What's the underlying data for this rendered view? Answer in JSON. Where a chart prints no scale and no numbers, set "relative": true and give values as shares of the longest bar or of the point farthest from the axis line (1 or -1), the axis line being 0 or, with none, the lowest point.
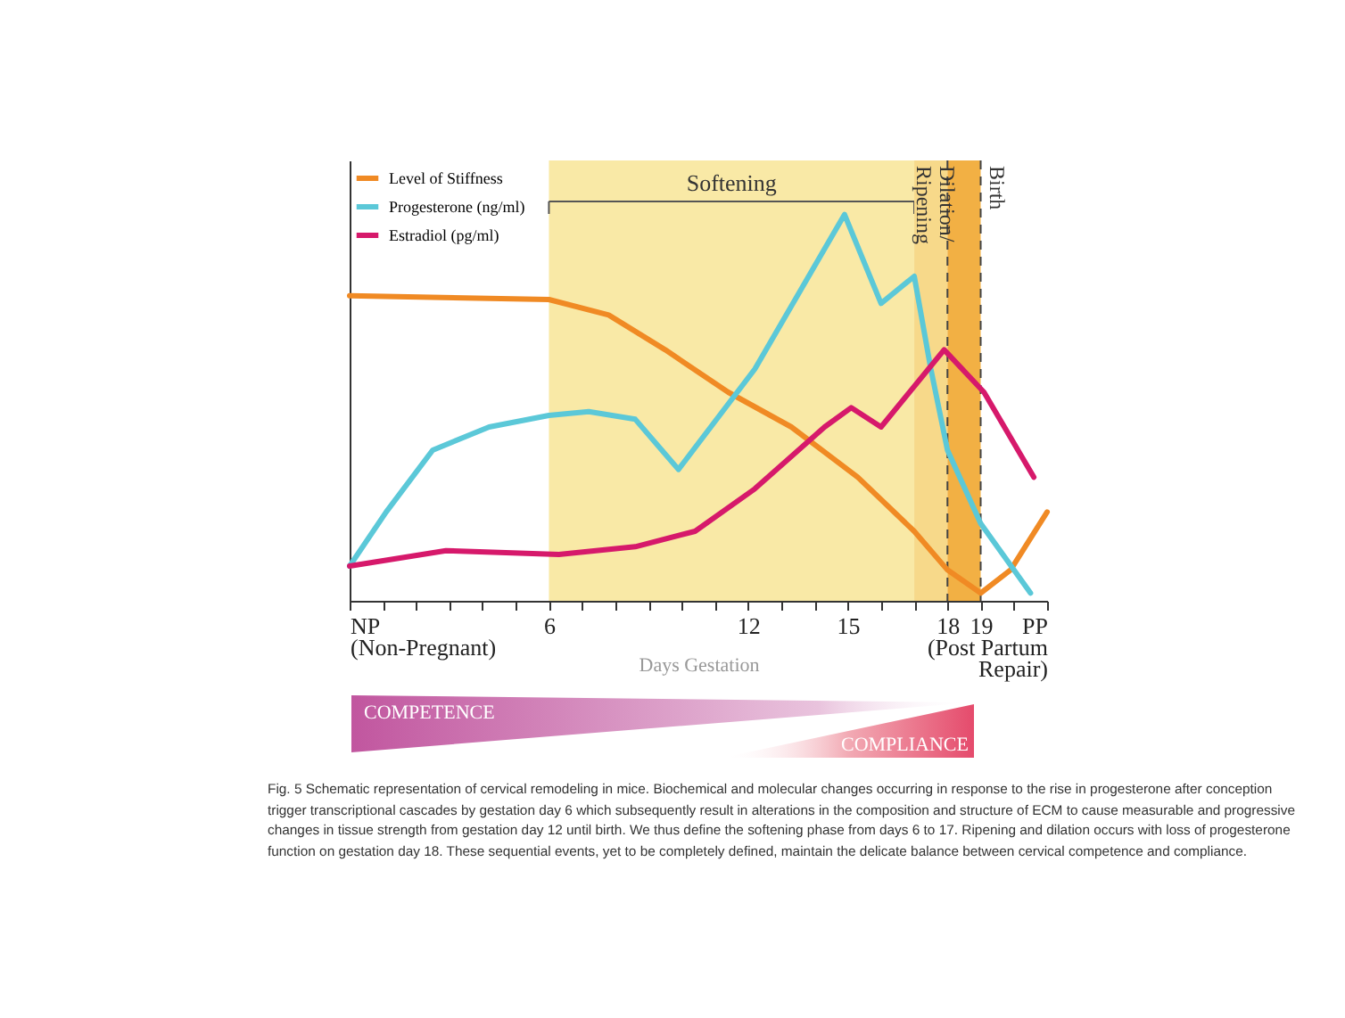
{
  "chart_data": {
    "type": "line",
    "relative": true,
    "xlabel": "Days Gestation",
    "xlim": [
      0,
      21
    ],
    "xticks": [
      {
        "value": 0,
        "label": "NP\n(Non-Pregnant)"
      },
      {
        "value": 1,
        "label": null
      },
      {
        "value": 2,
        "label": null
      },
      {
        "value": 3,
        "label": null
      },
      {
        "value": 4,
        "label": null
      },
      {
        "value": 5,
        "label": null
      },
      6,
      {
        "value": 7,
        "label": null
      },
      {
        "value": 8,
        "label": null
      },
      {
        "value": 9,
        "label": null
      },
      {
        "value": 10,
        "label": null
      },
      {
        "value": 11,
        "label": null
      },
      12,
      {
        "value": 13,
        "label": null
      },
      {
        "value": 14,
        "label": null
      },
      15,
      {
        "value": 16,
        "label": null
      },
      {
        "value": 17,
        "label": null
      },
      18,
      19,
      {
        "value": 20,
        "label": null
      },
      {
        "value": 21,
        "label": "PP\n(Post Partum\nRepair)"
      }
    ],
    "legend": "top left",
    "line_style": "solid",
    "series": [
      {
        "name": "Level of Stiffness",
        "color": "#f08a24",
        "x": [
          0,
          6,
          7.8,
          9.5,
          11.4,
          13.3,
          15.3,
          17,
          18,
          19,
          19.9,
          21
        ],
        "values": [
          0.79,
          0.78,
          0.74,
          0.65,
          0.54,
          0.45,
          0.32,
          0.18,
          0.08,
          0.02,
          0.08,
          0.23
        ]
      },
      {
        "name": "Progesterone (ng/ml)",
        "color": "#5bc8d8",
        "x": [
          0,
          1.1,
          2.5,
          4.2,
          6,
          7.2,
          8.6,
          9.9,
          12.2,
          14.9,
          16,
          17,
          17.5,
          18,
          19,
          20.5
        ],
        "values": [
          0.09,
          0.23,
          0.39,
          0.45,
          0.48,
          0.49,
          0.47,
          0.34,
          0.6,
          1,
          0.77,
          0.84,
          0.6,
          0.39,
          0.2,
          0.02
        ]
      },
      {
        "name": "Estradiol (pg/ml)",
        "color": "#d6196b",
        "x": [
          0,
          2.9,
          6.3,
          8.6,
          10.4,
          12.2,
          14.3,
          15.1,
          16,
          17.9,
          19.1,
          20.6
        ],
        "values": [
          0.09,
          0.13,
          0.12,
          0.14,
          0.18,
          0.29,
          0.45,
          0.5,
          0.45,
          0.65,
          0.54,
          0.32
        ]
      }
    ],
    "bands": [
      {
        "axis": "x",
        "from": 6,
        "to": 17,
        "color": "#f9e9a6",
        "label": "Softening"
      },
      {
        "axis": "x",
        "from": 17,
        "to": 18,
        "color": "#f7d98a"
      },
      {
        "axis": "x",
        "from": 18,
        "to": 19,
        "color": "#f2b044"
      }
    ],
    "ref_lines": [
      {
        "axis": "x",
        "value": 18,
        "label": "Dilation/\nRipening",
        "line_style": "dashed"
      },
      {
        "axis": "x",
        "value": 19,
        "label": "Birth",
        "line_style": "dashed"
      }
    ],
    "annotations": [
      "COMPETENCE",
      "COMPLIANCE",
      "Fig. 5  Schematic representation of cervical remodeling in mice. Biochemical and molecular changes occurring in response to the rise in progesterone after conception trigger transcriptional cascades by gestation day 6 which subsequently result in alterations in the composition and structure of ECM to cause measurable and progressive changes in tissue strength from gestation day 12 until birth. We thus define the softening phase from days 6 to 17. Ripening and dilation occurs with loss of progesterone function on gestation day 18. These sequential events, yet to be completely defined, maintain the delicate balance between cervical competence and compliance."
    ]
  }
}
